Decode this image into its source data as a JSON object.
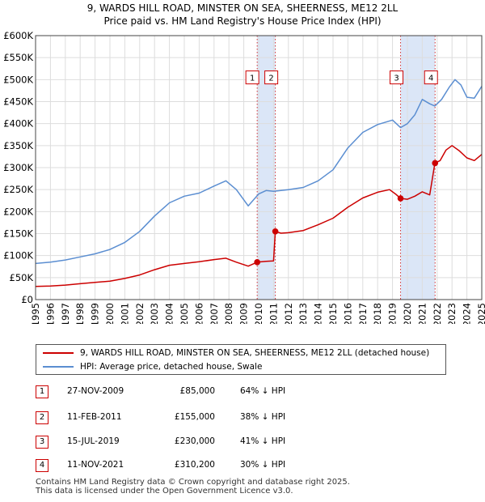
{
  "header": {
    "title_line1": "9, WARDS HILL ROAD, MINSTER ON SEA, SHEERNESS, ME12 2LL",
    "title_line2": "Price paid vs. HM Land Registry's House Price Index (HPI)"
  },
  "colors": {
    "property": "#cc0000",
    "hpi": "#5b8ed1",
    "shade": "#dbe6f7",
    "marker_border": "#cc0000"
  },
  "chart_data": {
    "type": "line",
    "title": "Price paid vs. HM Land Registry's House Price Index (HPI)",
    "xlabel": "",
    "ylabel": "",
    "xlim": [
      1995,
      2025
    ],
    "ylim": [
      0,
      600000
    ],
    "grid": true,
    "x_ticks": [
      1995,
      1996,
      1997,
      1998,
      1999,
      2000,
      2001,
      2002,
      2003,
      2004,
      2005,
      2006,
      2007,
      2008,
      2009,
      2010,
      2011,
      2012,
      2013,
      2014,
      2015,
      2016,
      2017,
      2018,
      2019,
      2020,
      2021,
      2022,
      2023,
      2024,
      2025
    ],
    "y_ticks": [
      0,
      50000,
      100000,
      150000,
      200000,
      250000,
      300000,
      350000,
      400000,
      450000,
      500000,
      550000,
      600000
    ],
    "y_tick_labels": [
      "£0",
      "£50K",
      "£100K",
      "£150K",
      "£200K",
      "£250K",
      "£300K",
      "£350K",
      "£400K",
      "£450K",
      "£500K",
      "£550K",
      "£600K"
    ],
    "series": [
      {
        "name": "9, WARDS HILL ROAD, MINSTER ON SEA, SHEERNESS, ME12 2LL (detached house)",
        "x": [
          1995,
          1996,
          1997,
          1998,
          1999,
          2000,
          2001,
          2002,
          2003,
          2004,
          2005,
          2006,
          2007,
          2007.8,
          2008.5,
          2009.3,
          2009.9,
          2010.5,
          2011.0,
          2011.12,
          2011.5,
          2012,
          2013,
          2014,
          2015,
          2016,
          2017,
          2018,
          2018.8,
          2019.2,
          2019.54,
          2020,
          2020.5,
          2021,
          2021.5,
          2021.85,
          2022.2,
          2022.6,
          2023,
          2023.5,
          2024,
          2024.5,
          2025
        ],
        "y": [
          30000,
          31000,
          33000,
          36000,
          39000,
          42000,
          48000,
          56000,
          68000,
          78000,
          82000,
          86000,
          91000,
          94000,
          85000,
          76000,
          85000,
          87000,
          88000,
          155000,
          151000,
          152000,
          157000,
          170000,
          185000,
          210000,
          231000,
          244000,
          250000,
          240000,
          230000,
          228000,
          235000,
          245000,
          238000,
          310200,
          316000,
          340000,
          350000,
          338000,
          322000,
          316000,
          330000
        ]
      },
      {
        "name": "HPI: Average price, detached house, Swale",
        "x": [
          1995,
          1996,
          1997,
          1998,
          1999,
          2000,
          2001,
          2002,
          2003,
          2004,
          2005,
          2006,
          2007,
          2007.8,
          2008.5,
          2009.3,
          2010,
          2010.5,
          2011,
          2012,
          2013,
          2014,
          2015,
          2016,
          2017,
          2018,
          2019,
          2019.54,
          2020,
          2020.5,
          2021,
          2021.5,
          2021.85,
          2022.3,
          2022.8,
          2023.2,
          2023.6,
          2024,
          2024.5,
          2025
        ],
        "y": [
          82000,
          85000,
          90000,
          97000,
          104000,
          114000,
          130000,
          155000,
          190000,
          220000,
          235000,
          242000,
          258000,
          270000,
          250000,
          213000,
          240000,
          248000,
          246000,
          250000,
          255000,
          270000,
          295000,
          345000,
          380000,
          398000,
          408000,
          391000,
          400000,
          420000,
          455000,
          445000,
          440000,
          455000,
          482000,
          500000,
          488000,
          460000,
          458000,
          485000
        ]
      }
    ],
    "annotations": [
      {
        "id": "1",
        "x": 2009.9,
        "y": 85000,
        "date": "27-NOV-2009",
        "price": "£85,000",
        "hpi_diff": "64% ↓ HPI"
      },
      {
        "id": "2",
        "x": 2011.12,
        "y": 155000,
        "date": "11-FEB-2011",
        "price": "£155,000",
        "hpi_diff": "38% ↓ HPI"
      },
      {
        "id": "3",
        "x": 2019.54,
        "y": 230000,
        "date": "15-JUL-2019",
        "price": "£230,000",
        "hpi_diff": "41% ↓ HPI"
      },
      {
        "id": "4",
        "x": 2021.86,
        "y": 310200,
        "date": "11-NOV-2021",
        "price": "£310,200",
        "hpi_diff": "30% ↓ HPI"
      }
    ],
    "shaded_spans": [
      [
        2009.9,
        2011.12
      ],
      [
        2019.54,
        2021.86
      ]
    ],
    "legend_position": "below chart"
  },
  "legend": {
    "property_label": "9, WARDS HILL ROAD, MINSTER ON SEA, SHEERNESS, ME12 2LL (detached house)",
    "hpi_label": "HPI: Average price, detached house, Swale"
  },
  "transactions": [
    {
      "num": "1",
      "date": "27-NOV-2009",
      "price": "£85,000",
      "hpi": "64% ↓ HPI"
    },
    {
      "num": "2",
      "date": "11-FEB-2011",
      "price": "£155,000",
      "hpi": "38% ↓ HPI"
    },
    {
      "num": "3",
      "date": "15-JUL-2019",
      "price": "£230,000",
      "hpi": "41% ↓ HPI"
    },
    {
      "num": "4",
      "date": "11-NOV-2021",
      "price": "£310,200",
      "hpi": "30% ↓ HPI"
    }
  ],
  "footer": {
    "line1": "Contains HM Land Registry data © Crown copyright and database right 2025.",
    "line2": "This data is licensed under the Open Government Licence v3.0."
  }
}
